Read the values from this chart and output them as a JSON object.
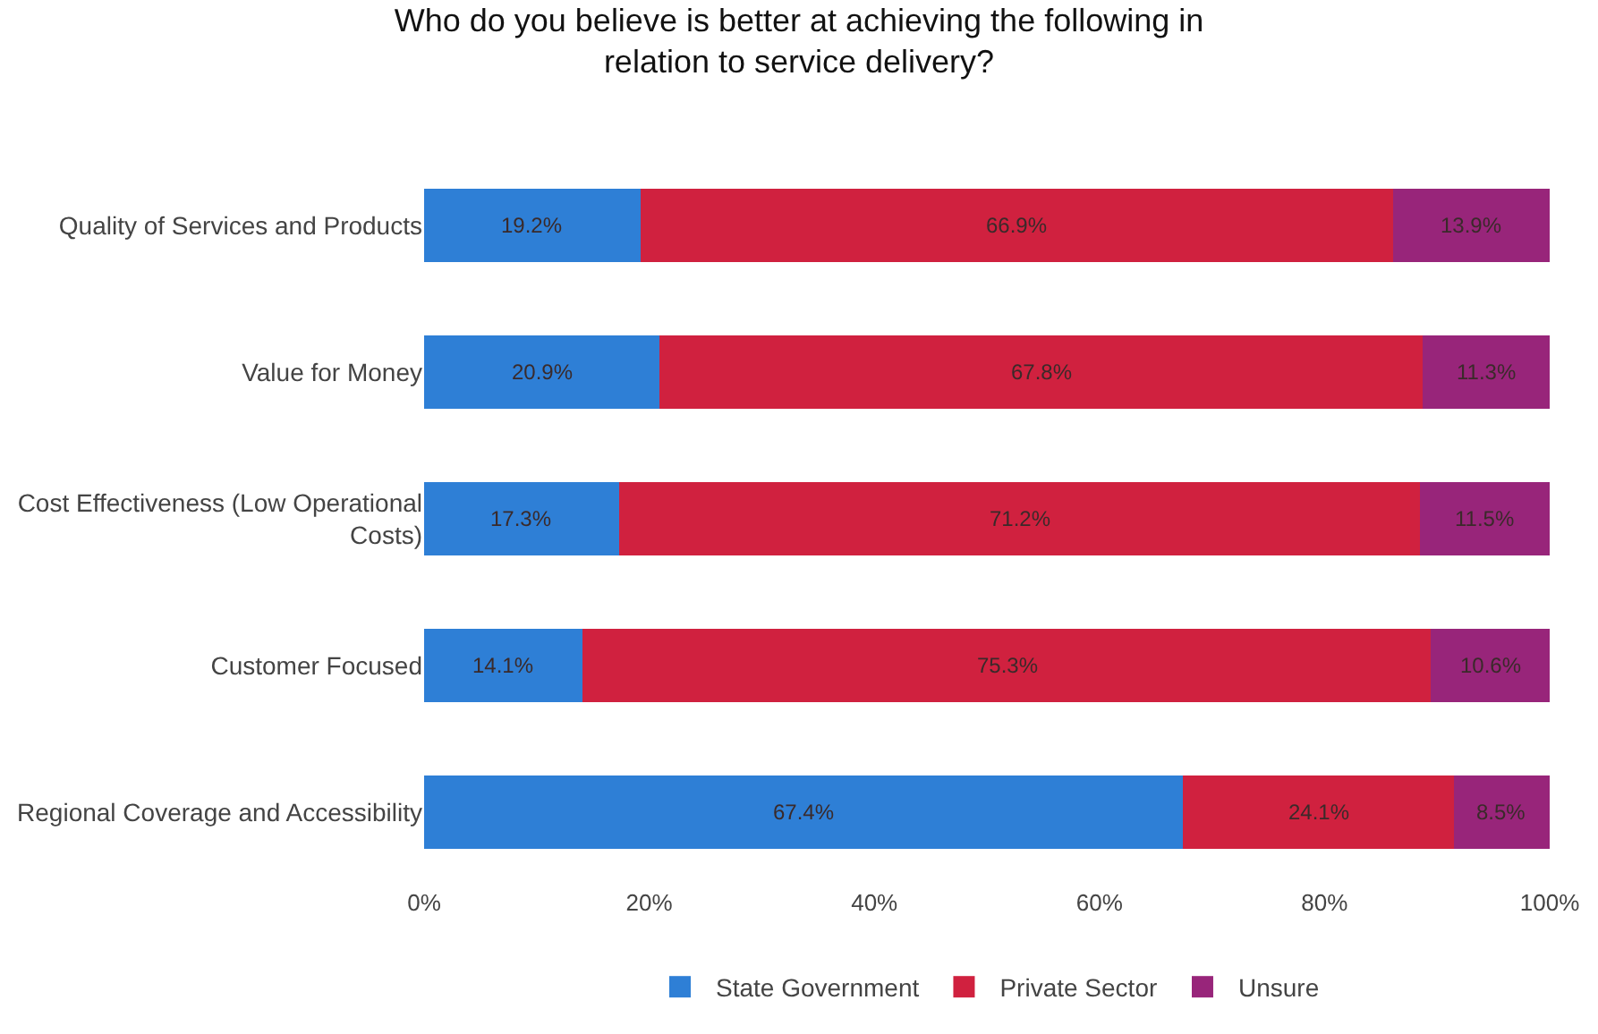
{
  "chart_data": {
    "type": "bar",
    "orientation": "horizontal",
    "stacked": true,
    "title": "Who do you believe is better at achieving the following in relation to service delivery?",
    "categories": [
      "Quality of Services and Products",
      "Value for Money",
      "Cost Effectiveness (Low Operational Costs)",
      "Customer Focused",
      "Regional Coverage and Accessibility"
    ],
    "series": [
      {
        "name": "State Government",
        "color": "#2e7fd6",
        "values": [
          19.2,
          20.9,
          17.3,
          14.1,
          67.4
        ],
        "value_labels": [
          "19.2%",
          "20.9%",
          "17.3%",
          "14.1%",
          "67.4%"
        ]
      },
      {
        "name": "Private Sector",
        "color": "#d0213f",
        "values": [
          66.9,
          67.8,
          71.2,
          75.3,
          24.1
        ],
        "value_labels": [
          "66.9%",
          "67.8%",
          "71.2%",
          "75.3%",
          "24.1%"
        ]
      },
      {
        "name": "Unsure",
        "color": "#98257a",
        "values": [
          13.9,
          11.3,
          11.5,
          10.6,
          8.5
        ],
        "value_labels": [
          "13.9%",
          "11.3%",
          "11.5%",
          "10.6%",
          "8.5%"
        ]
      }
    ],
    "xlim": [
      0,
      100
    ],
    "xticks": [
      {
        "value": 0,
        "label": "0%"
      },
      {
        "value": 20,
        "label": "20%"
      },
      {
        "value": 40,
        "label": "40%"
      },
      {
        "value": 60,
        "label": "60%"
      },
      {
        "value": 80,
        "label": "80%"
      },
      {
        "value": 100,
        "label": "100%"
      }
    ],
    "legend": "bottom"
  }
}
